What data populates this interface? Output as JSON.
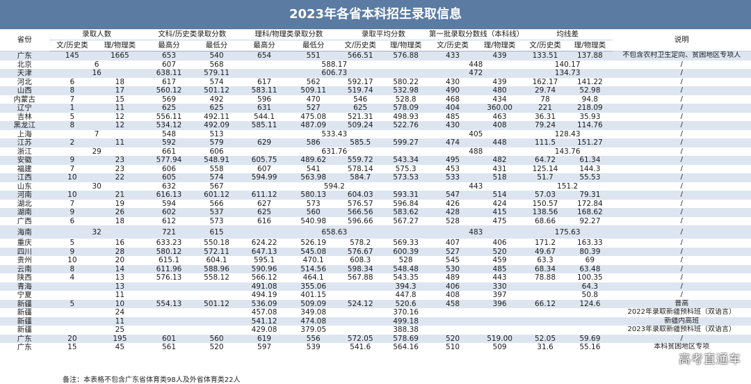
{
  "title": "2023年各省本科招生录取信息",
  "headers": {
    "province": "省份",
    "groups": [
      "录取人数",
      "文科/历史类录取分数",
      "理科/物理类录取分数",
      "录取平均分数",
      "第一批录取分数线（本科线）",
      "均线差"
    ],
    "note": "说明",
    "sub": [
      "文/历史类",
      "理/物理类",
      "最高分",
      "最低分",
      "最高分",
      "最低分",
      "文/历史类",
      "理/物理类",
      "文/历史类",
      "理/物理类",
      "文/历史类",
      "理/物理类"
    ]
  },
  "rows": [
    {
      "p": "广东",
      "c": [
        "145",
        "1665",
        "653",
        "540",
        "654",
        "551",
        "566.51",
        "576.88",
        "433",
        "439",
        "133.51",
        "137.88"
      ],
      "note": "不包含农村卫生定向、贫困地区专项人"
    },
    {
      "p": "北京",
      "m": [
        "6",
        "607",
        "568",
        "588.17",
        "448",
        "140.17"
      ],
      "note": "/"
    },
    {
      "p": "天津",
      "m": [
        "16",
        "638.11",
        "579.11",
        "606.73",
        "472",
        "134.73"
      ],
      "note": "/"
    },
    {
      "p": "河北",
      "c": [
        "6",
        "18",
        "617",
        "574",
        "617",
        "562",
        "592.17",
        "580.22",
        "430",
        "439",
        "162.17",
        "141.22"
      ],
      "note": "/"
    },
    {
      "p": "山西",
      "c": [
        "8",
        "17",
        "560.12",
        "501.12",
        "583.11",
        "509.11",
        "519.74",
        "532.98",
        "490",
        "480",
        "29.74",
        "52.98"
      ],
      "note": "/"
    },
    {
      "p": "内蒙古",
      "c": [
        "7",
        "15",
        "569",
        "492",
        "596",
        "470",
        "546",
        "528.8",
        "468",
        "434",
        "78",
        "94.8"
      ],
      "note": "/"
    },
    {
      "p": "辽宁",
      "c": [
        "1",
        "11",
        "625",
        "625",
        "631",
        "527",
        "625",
        "578.09",
        "404",
        "360.00",
        "221",
        "218.09"
      ],
      "note": "/"
    },
    {
      "p": "吉林",
      "c": [
        "5",
        "12",
        "556.11",
        "492.11",
        "544.1",
        "475.08",
        "521.31",
        "498.93",
        "485",
        "463",
        "36.31",
        "35.93"
      ],
      "note": "/"
    },
    {
      "p": "黑龙江",
      "c": [
        "8",
        "12",
        "534.12",
        "492.09",
        "585.11",
        "487.09",
        "509.24",
        "522.76",
        "430",
        "408",
        "79.24",
        "114.76"
      ],
      "note": "/"
    },
    {
      "p": "上海",
      "m": [
        "7",
        "548",
        "513",
        "533.43",
        "405",
        "128.43"
      ],
      "note": "/"
    },
    {
      "p": "江苏",
      "c": [
        "2",
        "11",
        "592",
        "579",
        "629",
        "586",
        "585.5",
        "599.27",
        "474",
        "448",
        "111.5",
        "151.27"
      ],
      "note": "/"
    },
    {
      "p": "浙江",
      "m": [
        "29",
        "661",
        "606",
        "631.76",
        "488",
        "143.76"
      ],
      "note": "/"
    },
    {
      "p": "安徽",
      "c": [
        "9",
        "23",
        "577.94",
        "548.91",
        "605.75",
        "489.62",
        "559.72",
        "543.34",
        "495",
        "482",
        "64.72",
        "61.34"
      ],
      "note": "/"
    },
    {
      "p": "福建",
      "c": [
        "7",
        "23",
        "606",
        "558",
        "607",
        "541",
        "578.14",
        "575.3",
        "453",
        "431",
        "125.14",
        "144.3"
      ],
      "note": "/"
    },
    {
      "p": "江西",
      "c": [
        "10",
        "22",
        "605",
        "574",
        "594.99",
        "563.98",
        "584.7",
        "573.53",
        "533",
        "518",
        "51.7",
        "55.53"
      ],
      "note": "/"
    },
    {
      "p": "山东",
      "m": [
        "30",
        "632",
        "567",
        "594.2",
        "443",
        "151.2"
      ],
      "note": "/"
    },
    {
      "p": "河南",
      "c": [
        "10",
        "21",
        "616.13",
        "601.12",
        "611.12",
        "580.13",
        "604.03",
        "593.31",
        "547",
        "514",
        "57.03",
        "79.31"
      ],
      "note": "/"
    },
    {
      "p": "湖北",
      "c": [
        "7",
        "19",
        "594",
        "566",
        "627",
        "573",
        "576.57",
        "596.84",
        "426",
        "424",
        "150.57",
        "172.84"
      ],
      "note": "/"
    },
    {
      "p": "湖南",
      "c": [
        "9",
        "26",
        "602",
        "537",
        "625",
        "560",
        "566.56",
        "583.62",
        "428",
        "415",
        "138.56",
        "168.62"
      ],
      "note": "/"
    },
    {
      "p": "广西",
      "c": [
        "6",
        "18",
        "612",
        "573",
        "616",
        "540.98",
        "596.66",
        "567.27",
        "528",
        "475",
        "68.66",
        "92.27"
      ],
      "note": "/"
    },
    {
      "p": "海南",
      "m": [
        "32",
        "721",
        "615",
        "658.63",
        "483",
        "175.63"
      ],
      "note": "/",
      "tall": true
    },
    {
      "p": "重庆",
      "c": [
        "5",
        "16",
        "633.23",
        "550.18",
        "624.22",
        "526.19",
        "578.2",
        "569.33",
        "407",
        "406",
        "171.2",
        "163.33"
      ],
      "note": "/"
    },
    {
      "p": "四川",
      "c": [
        "9",
        "28",
        "580.12",
        "572.11",
        "647.13",
        "545.08",
        "576.67",
        "600.39",
        "527",
        "520",
        "49.67",
        "80.39"
      ],
      "note": "/"
    },
    {
      "p": "贵州",
      "c": [
        "10",
        "20",
        "615.1",
        "604.1",
        "595.1",
        "470.1",
        "608.3",
        "528",
        "545",
        "459",
        "63.3",
        "69"
      ],
      "note": "/"
    },
    {
      "p": "云南",
      "c": [
        "8",
        "14",
        "611.96",
        "588.96",
        "590.96",
        "514.56",
        "598.34",
        "548.48",
        "530",
        "485",
        "68.34",
        "63.48"
      ],
      "note": "/"
    },
    {
      "p": "陕西",
      "c": [
        "4",
        "13",
        "576.13",
        "558.12",
        "566.12",
        "464.1",
        "567.88",
        "543.35",
        "489",
        "443",
        "78.88",
        "100.35"
      ],
      "note": "/"
    },
    {
      "p": "青海",
      "c": [
        "",
        "13",
        "",
        "",
        "491.08",
        "355.06",
        "",
        "394.3",
        "406",
        "330",
        "",
        "64.3"
      ],
      "note": "/"
    },
    {
      "p": "宁夏",
      "c": [
        "",
        "11",
        "",
        "",
        "494.19",
        "401.15",
        "",
        "447.8",
        "408",
        "397",
        "",
        "50.8"
      ],
      "note": "/"
    },
    {
      "p": "新疆",
      "c": [
        "5",
        "10",
        "554.13",
        "501.12",
        "536.09",
        "509.09",
        "524.12",
        "520.6",
        "458",
        "396",
        "66.12",
        "124.6"
      ],
      "note": "普高"
    },
    {
      "p": "新疆",
      "c": [
        "",
        "24",
        "",
        "",
        "457.08",
        "349.08",
        "",
        "370.16",
        "",
        "",
        "",
        ""
      ],
      "note": "2022年录取新疆预科班（双语言）"
    },
    {
      "p": "新疆",
      "c": [
        "",
        "11",
        "",
        "",
        "541.12",
        "474.08",
        "",
        "499.18",
        "",
        "",
        "",
        ""
      ],
      "note": "新疆内高班"
    },
    {
      "p": "新疆",
      "c": [
        "",
        "25",
        "",
        "",
        "429.08",
        "379.05",
        "",
        "388.38",
        "",
        "",
        "",
        ""
      ],
      "note": "2023年录取新疆预科班（双语言）"
    },
    {
      "p": "广东",
      "c": [
        "20",
        "195",
        "601",
        "560",
        "619",
        "556",
        "572.05",
        "578.69",
        "520",
        "519.00",
        "52.05",
        "59.69"
      ],
      "note": "/"
    },
    {
      "p": "广东",
      "c": [
        "15",
        "45",
        "561",
        "520",
        "597",
        "539",
        "541.6",
        "564.16",
        "510",
        "509",
        "31.6",
        "55.16"
      ],
      "note": "本科贫困地区专项"
    }
  ],
  "footnote": "备注：本表格不包含广东省体育类98人及外省体育类22人",
  "watermark": "高考直通车"
}
